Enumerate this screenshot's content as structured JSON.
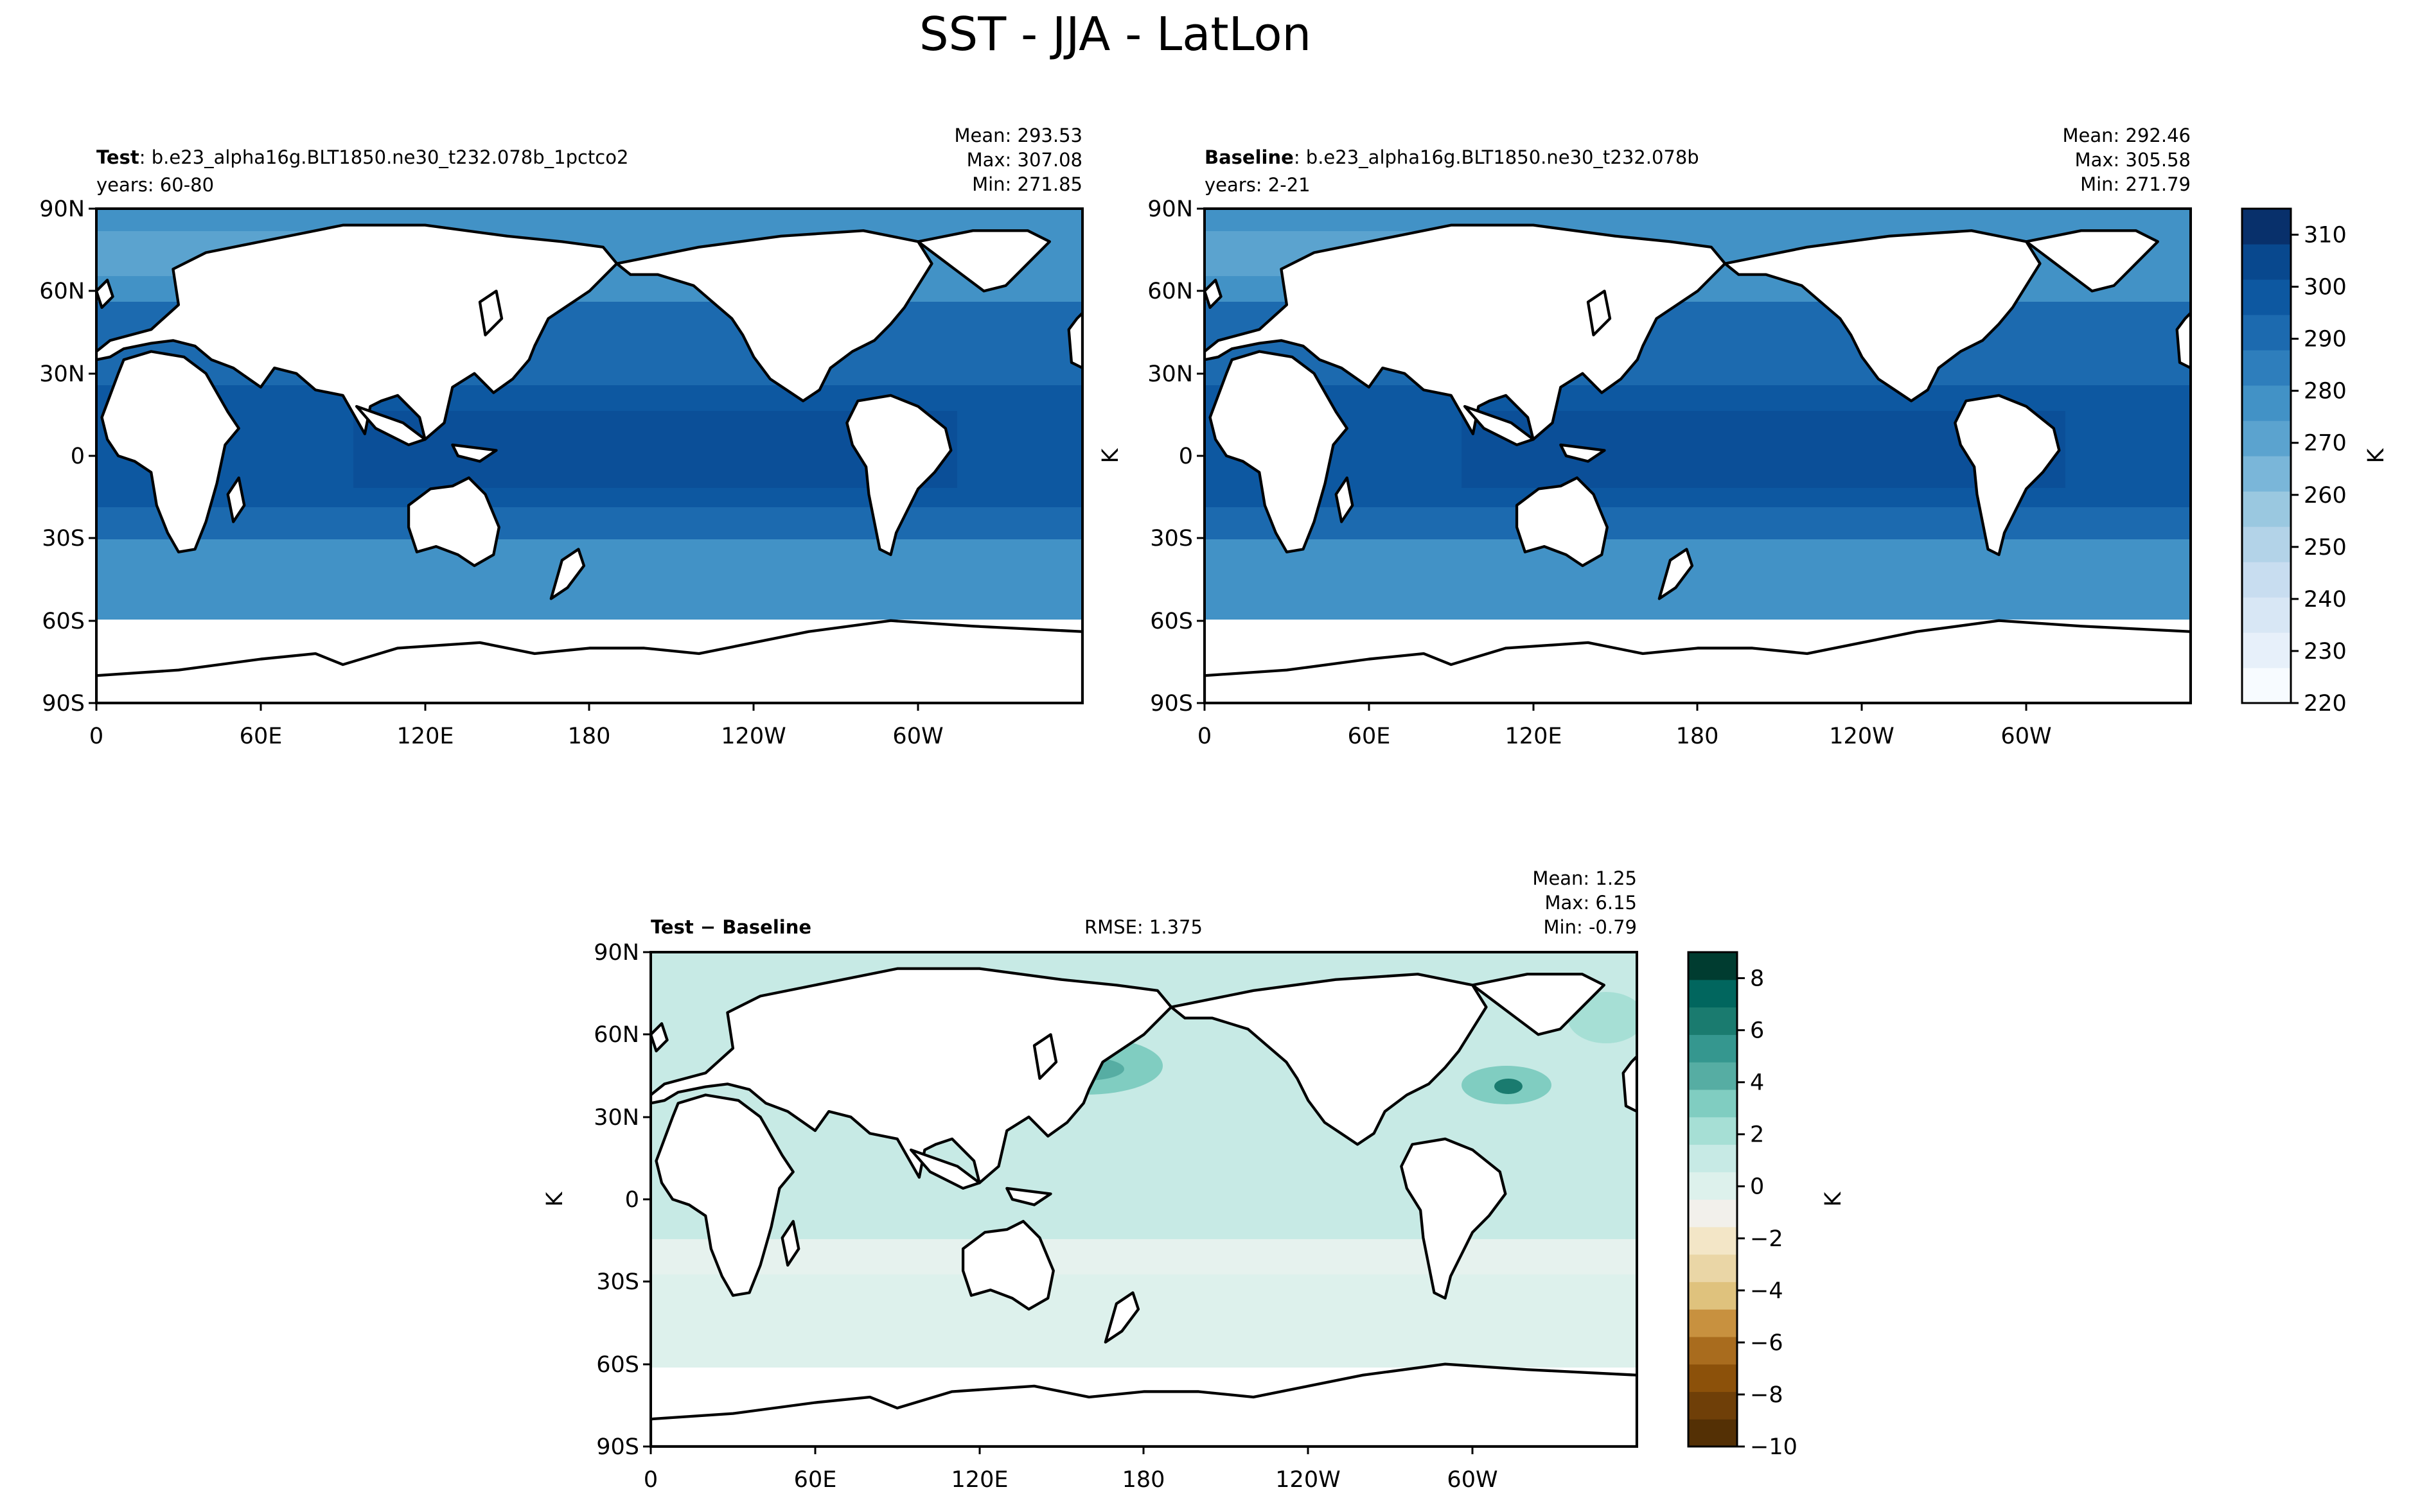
{
  "figure": {
    "title": "SST - JJA - LatLon"
  },
  "colors": {
    "land": "#ffffff",
    "coast": "#000000",
    "blues": [
      "#f7fbff",
      "#e7f0fa",
      "#d8e7f5",
      "#c8ddf0",
      "#b3d3e8",
      "#9ac8e0",
      "#7ab6d9",
      "#5ba3cf",
      "#4292c6",
      "#2e7ebc",
      "#1c6aaf",
      "#0d58a1",
      "#08488e",
      "#08306b"
    ],
    "brbg": [
      "#543005",
      "#6f3f08",
      "#8c510a",
      "#a96c1e",
      "#c8913f",
      "#dfc27d",
      "#ead6a6",
      "#f3e6c7",
      "#f2f0eb",
      "#ddf1ec",
      "#c7eae5",
      "#a6dfd5",
      "#80cdc1",
      "#56ada3",
      "#35978f",
      "#1a7b6f",
      "#01665e",
      "#003c30"
    ]
  },
  "chart_data": [
    {
      "type": "heatmap",
      "panel": "test",
      "label_bold": "Test",
      "label_text": ": b.e23_alpha16g.BLT1850.ne30_t232.078b_1pctco2",
      "years": "years: 60-80",
      "stats": [
        "Mean: 293.53",
        "Max: 307.08",
        "Min: 271.85"
      ],
      "mean": 293.53,
      "max": 307.08,
      "min": 271.85,
      "x_ticks": [
        "0",
        "60E",
        "120E",
        "180",
        "120W",
        "60W"
      ],
      "y_ticks": [
        "90N",
        "60N",
        "30N",
        "0",
        "30S",
        "60S",
        "90S"
      ],
      "xlim": [
        0,
        360
      ],
      "ylim": [
        -90,
        90
      ]
    },
    {
      "type": "heatmap",
      "panel": "baseline",
      "label_bold": "Baseline",
      "label_text": ": b.e23_alpha16g.BLT1850.ne30_t232.078b",
      "years": "years: 2-21",
      "stats": [
        "Mean: 292.46",
        "Max: 305.58",
        "Min: 271.79"
      ],
      "mean": 292.46,
      "max": 305.58,
      "min": 271.79,
      "y_axis_label": "K",
      "x_ticks": [
        "0",
        "60E",
        "120E",
        "180",
        "120W",
        "60W"
      ],
      "y_ticks": [
        "90N",
        "60N",
        "30N",
        "0",
        "30S",
        "60S",
        "90S"
      ],
      "xlim": [
        0,
        360
      ],
      "ylim": [
        -90,
        90
      ]
    },
    {
      "type": "heatmap",
      "panel": "diff",
      "label_bold": "Test − Baseline",
      "rmse": "RMSE: 1.375",
      "stats": [
        "Mean:  1.25",
        "Max:  6.15",
        "Min: -0.79"
      ],
      "mean": 1.25,
      "max": 6.15,
      "min": -0.79,
      "rmse_value": 1.375,
      "y_axis_label": "K",
      "x_ticks": [
        "0",
        "60E",
        "120E",
        "180",
        "120W",
        "60W"
      ],
      "y_ticks": [
        "90N",
        "60N",
        "30N",
        "0",
        "30S",
        "60S",
        "90S"
      ],
      "xlim": [
        0,
        360
      ],
      "ylim": [
        -90,
        90
      ]
    }
  ],
  "colorbars": {
    "main": {
      "label": "K",
      "range": [
        220,
        315
      ],
      "ticks": [
        "220",
        "230",
        "240",
        "250",
        "260",
        "270",
        "280",
        "290",
        "300",
        "310"
      ],
      "tick_values": [
        220,
        230,
        240,
        250,
        260,
        270,
        280,
        290,
        300,
        310
      ]
    },
    "diff": {
      "label": "K",
      "range": [
        -10,
        9
      ],
      "ticks": [
        "−10",
        "−8",
        "−6",
        "−4",
        "−2",
        "0",
        "2",
        "4",
        "6",
        "8"
      ],
      "tick_values": [
        -10,
        -8,
        -6,
        -4,
        -2,
        0,
        2,
        4,
        6,
        8
      ]
    }
  }
}
